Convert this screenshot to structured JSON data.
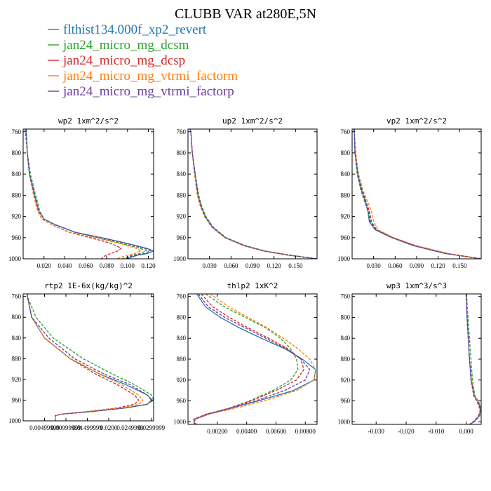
{
  "figure_title": "CLUBB VAR at280E,5N",
  "legend": [
    {
      "label": "flthist134.000f_xp2_revert",
      "color": "#1f77b4",
      "dash": "solid"
    },
    {
      "label": "jan24_micro_mg_dcsm",
      "color": "#2ca02c",
      "dash": "dash"
    },
    {
      "label": "jan24_micro_mg_dcsp",
      "color": "#d62728",
      "dash": "dash"
    },
    {
      "label": "jan24_micro_mg_vtrmi_factorm",
      "color": "#ff7f0e",
      "dash": "dash"
    },
    {
      "label": "jan24_micro_mg_vtrmi_factorp",
      "color": "#6a3d9a",
      "dash": "dash"
    }
  ],
  "chart_data": [
    {
      "type": "line",
      "title": "wp2  1xm^2/s^2",
      "xlim": [
        0.0,
        0.125
      ],
      "ylim": [
        755,
        1000
      ],
      "y_inverted": true,
      "xticks": [
        0.02,
        0.04,
        0.06,
        0.08,
        0.1,
        0.12
      ],
      "xtick_labels": [
        "0.020",
        "0.040",
        "0.060",
        "0.080",
        "0.100",
        "0.120"
      ],
      "yticks": [
        760,
        800,
        840,
        880,
        920,
        960,
        1000
      ],
      "ytick_labels": [
        "760",
        "800",
        "840",
        "880",
        "920",
        "960",
        "1000"
      ],
      "y": [
        755,
        760,
        800,
        840,
        880,
        910,
        925,
        935,
        950,
        960,
        970,
        980,
        985,
        990,
        993,
        996,
        1000
      ],
      "series": [
        {
          "x": [
            0.003,
            0.003,
            0.004,
            0.006,
            0.011,
            0.015,
            0.02,
            0.03,
            0.05,
            0.075,
            0.098,
            0.118,
            0.125,
            0.119,
            0.11,
            0.105,
            0.1
          ]
        },
        {
          "x": [
            0.002,
            0.002,
            0.004,
            0.007,
            0.012,
            0.016,
            0.02,
            0.03,
            0.05,
            0.072,
            0.093,
            0.112,
            0.118,
            0.112,
            0.105,
            0.1,
            0.095
          ]
        },
        {
          "x": [
            0.003,
            0.003,
            0.004,
            0.006,
            0.01,
            0.014,
            0.018,
            0.027,
            0.044,
            0.064,
            0.083,
            0.094,
            0.091,
            0.084,
            0.08,
            0.077,
            0.075
          ]
        },
        {
          "x": [
            0.003,
            0.003,
            0.004,
            0.006,
            0.01,
            0.014,
            0.018,
            0.027,
            0.045,
            0.068,
            0.09,
            0.108,
            0.113,
            0.107,
            0.1,
            0.095,
            0.09
          ]
        },
        {
          "x": [
            0.003,
            0.003,
            0.004,
            0.006,
            0.011,
            0.015,
            0.02,
            0.03,
            0.05,
            0.074,
            0.097,
            0.116,
            0.122,
            0.116,
            0.108,
            0.102,
            0.098
          ]
        }
      ]
    },
    {
      "type": "line",
      "title": "up2  1xm^2/s^2",
      "xlim": [
        0.0,
        0.18
      ],
      "ylim": [
        755,
        1000
      ],
      "y_inverted": true,
      "xticks": [
        0.03,
        0.06,
        0.09,
        0.12,
        0.15
      ],
      "xtick_labels": [
        "0.030",
        "0.060",
        "0.090",
        "0.120",
        "0.150"
      ],
      "yticks": [
        760,
        800,
        840,
        880,
        920,
        960,
        1000
      ],
      "ytick_labels": [
        "760",
        "800",
        "840",
        "880",
        "920",
        "960",
        "1000"
      ],
      "y": [
        755,
        760,
        800,
        840,
        880,
        900,
        920,
        940,
        960,
        975,
        985,
        993,
        1000
      ],
      "series": [
        {
          "x": [
            0.003,
            0.004,
            0.006,
            0.01,
            0.014,
            0.018,
            0.024,
            0.034,
            0.052,
            0.078,
            0.105,
            0.14,
            0.18
          ]
        },
        {
          "x": [
            0.003,
            0.004,
            0.006,
            0.01,
            0.015,
            0.019,
            0.025,
            0.035,
            0.053,
            0.08,
            0.107,
            0.142,
            0.18
          ]
        },
        {
          "x": [
            0.003,
            0.004,
            0.006,
            0.01,
            0.014,
            0.018,
            0.024,
            0.034,
            0.052,
            0.078,
            0.104,
            0.139,
            0.178
          ]
        },
        {
          "x": [
            0.003,
            0.004,
            0.006,
            0.009,
            0.013,
            0.017,
            0.023,
            0.033,
            0.051,
            0.077,
            0.104,
            0.139,
            0.178
          ]
        },
        {
          "x": [
            0.003,
            0.004,
            0.006,
            0.01,
            0.014,
            0.018,
            0.024,
            0.034,
            0.052,
            0.079,
            0.106,
            0.141,
            0.18
          ]
        }
      ]
    },
    {
      "type": "line",
      "title": "vp2  1xm^2/s^2",
      "xlim": [
        0.0,
        0.18
      ],
      "ylim": [
        755,
        1000
      ],
      "y_inverted": true,
      "xticks": [
        0.03,
        0.06,
        0.09,
        0.12,
        0.15
      ],
      "xtick_labels": [
        "0.030",
        "0.060",
        "0.090",
        "0.120",
        "0.150"
      ],
      "yticks": [
        760,
        800,
        840,
        880,
        920,
        960,
        1000
      ],
      "ytick_labels": [
        "760",
        "800",
        "840",
        "880",
        "920",
        "960",
        "1000"
      ],
      "y": [
        755,
        760,
        800,
        840,
        870,
        890,
        910,
        930,
        945,
        960,
        975,
        990,
        1000
      ],
      "series": [
        {
          "x": [
            0.003,
            0.003,
            0.004,
            0.008,
            0.013,
            0.018,
            0.022,
            0.024,
            0.032,
            0.055,
            0.085,
            0.13,
            0.18
          ]
        },
        {
          "x": [
            0.003,
            0.003,
            0.004,
            0.007,
            0.012,
            0.017,
            0.022,
            0.025,
            0.033,
            0.056,
            0.087,
            0.132,
            0.18
          ]
        },
        {
          "x": [
            0.003,
            0.003,
            0.005,
            0.008,
            0.014,
            0.019,
            0.024,
            0.027,
            0.034,
            0.057,
            0.088,
            0.133,
            0.18
          ]
        },
        {
          "x": [
            0.003,
            0.003,
            0.005,
            0.009,
            0.015,
            0.021,
            0.027,
            0.03,
            0.036,
            0.058,
            0.089,
            0.134,
            0.18
          ]
        },
        {
          "x": [
            0.003,
            0.003,
            0.004,
            0.008,
            0.013,
            0.018,
            0.023,
            0.026,
            0.033,
            0.056,
            0.086,
            0.131,
            0.18
          ]
        }
      ]
    },
    {
      "type": "line",
      "title": "rtp2  1E-6x(kg/kg)^2",
      "xlim": [
        0.0,
        0.0305
      ],
      "ylim": [
        755,
        1000
      ],
      "y_inverted": true,
      "xticks": [
        0.005,
        0.01,
        0.015,
        0.02,
        0.025,
        0.03
      ],
      "xtick_labels": [
        "0.00499999",
        "0.00999999",
        "0.01499999",
        "0.0200",
        "0.0249999",
        "0.0299999"
      ],
      "yticks": [
        760,
        800,
        840,
        880,
        920,
        960,
        1000
      ],
      "ytick_labels": [
        "760",
        "800",
        "840",
        "880",
        "920",
        "960",
        "1000"
      ],
      "y": [
        755,
        760,
        800,
        840,
        880,
        910,
        930,
        950,
        960,
        968,
        975,
        982,
        987,
        990,
        993,
        1000
      ],
      "series": [
        {
          "x": [
            0.001,
            0.001,
            0.002,
            0.005,
            0.011,
            0.018,
            0.024,
            0.029,
            0.0302,
            0.029,
            0.024,
            0.016,
            0.009,
            0.0075,
            0.0075,
            0.0075
          ]
        },
        {
          "x": [
            0.001,
            0.001,
            0.003,
            0.007,
            0.014,
            0.021,
            0.026,
            0.03,
            0.0305,
            0.029,
            0.024,
            0.016,
            0.009,
            0.0075,
            0.0075,
            0.0075
          ]
        },
        {
          "x": [
            0.001,
            0.001,
            0.002,
            0.005,
            0.011,
            0.017,
            0.022,
            0.026,
            0.027,
            0.026,
            0.022,
            0.015,
            0.009,
            0.0075,
            0.0075,
            0.0075
          ]
        },
        {
          "x": [
            0.001,
            0.001,
            0.002,
            0.005,
            0.011,
            0.018,
            0.023,
            0.027,
            0.028,
            0.027,
            0.023,
            0.015,
            0.009,
            0.0075,
            0.0075,
            0.0075
          ]
        },
        {
          "x": [
            0.001,
            0.001,
            0.002,
            0.006,
            0.012,
            0.019,
            0.025,
            0.029,
            0.03,
            0.029,
            0.024,
            0.016,
            0.009,
            0.0075,
            0.0075,
            0.0075
          ]
        }
      ]
    },
    {
      "type": "line",
      "title": "thlp2  1xK^2",
      "xlim": [
        0.0,
        0.0088
      ],
      "ylim": [
        755,
        1005
      ],
      "y_inverted": true,
      "xticks": [
        0.002,
        0.004,
        0.006,
        0.008
      ],
      "xtick_labels": [
        "0.00200",
        "0.00400",
        "0.00600",
        "0.00800"
      ],
      "yticks": [
        760,
        800,
        840,
        880,
        920,
        960,
        1000
      ],
      "ytick_labels": [
        "760",
        "800",
        "840",
        "880",
        "920",
        "960",
        "1000"
      ],
      "y": [
        755,
        780,
        800,
        820,
        840,
        860,
        880,
        900,
        920,
        940,
        960,
        975,
        985,
        995,
        1002,
        1005
      ],
      "series": [
        {
          "x": [
            0.0006,
            0.0012,
            0.0022,
            0.0035,
            0.005,
            0.0066,
            0.0078,
            0.0087,
            0.0086,
            0.0072,
            0.0048,
            0.0028,
            0.0014,
            0.0005,
            0.0004,
            0.0006
          ]
        },
        {
          "x": [
            0.0012,
            0.0025,
            0.0039,
            0.0053,
            0.0063,
            0.007,
            0.0074,
            0.0075,
            0.007,
            0.0058,
            0.0042,
            0.0027,
            0.0013,
            0.0004,
            0.0004,
            0.0006
          ]
        },
        {
          "x": [
            0.0009,
            0.0017,
            0.0028,
            0.0041,
            0.0055,
            0.0068,
            0.0077,
            0.0079,
            0.0074,
            0.006,
            0.0043,
            0.0027,
            0.0013,
            0.0004,
            0.0004,
            0.0006
          ]
        },
        {
          "x": [
            0.0015,
            0.0028,
            0.0041,
            0.0054,
            0.0065,
            0.0075,
            0.0083,
            0.0087,
            0.0086,
            0.0074,
            0.0052,
            0.0031,
            0.0015,
            0.0005,
            0.0004,
            0.0006
          ]
        },
        {
          "x": [
            0.0007,
            0.0014,
            0.0025,
            0.0039,
            0.0053,
            0.0067,
            0.0077,
            0.0083,
            0.008,
            0.0066,
            0.0046,
            0.0028,
            0.0014,
            0.0005,
            0.0004,
            0.0006
          ]
        }
      ]
    },
    {
      "type": "line",
      "title": "wp3  1xm^3/s^3",
      "xlim": [
        -0.038,
        0.005
      ],
      "ylim": [
        755,
        1005
      ],
      "y_inverted": true,
      "xticks": [
        -0.03,
        -0.02,
        -0.01,
        0.0
      ],
      "xtick_labels": [
        "-0.030",
        "-0.020",
        "-0.010",
        "0.000"
      ],
      "yticks": [
        760,
        800,
        840,
        880,
        920,
        960,
        1000
      ],
      "ytick_labels": [
        "760",
        "800",
        "840",
        "880",
        "920",
        "960",
        "1000"
      ],
      "y": [
        755,
        800,
        840,
        880,
        920,
        950,
        960,
        970,
        980,
        990,
        1000,
        1005
      ],
      "series": [
        {
          "x": [
            0.0,
            0.0003,
            0.0007,
            0.0011,
            0.0017,
            0.0027,
            0.0038,
            0.0046,
            0.0048,
            0.0042,
            0.0026,
            0.0012
          ]
        },
        {
          "x": [
            0.0001,
            0.0006,
            0.0011,
            0.0016,
            0.0021,
            0.0029,
            0.004,
            0.0048,
            0.005,
            0.0044,
            0.0028,
            0.0013
          ]
        },
        {
          "x": [
            0.0,
            0.0003,
            0.0007,
            0.0011,
            0.0016,
            0.0025,
            0.0035,
            0.0043,
            0.0046,
            0.004,
            0.0024,
            0.0011
          ]
        },
        {
          "x": [
            0.0,
            0.0003,
            0.0007,
            0.0011,
            0.0018,
            0.0027,
            0.0038,
            0.0046,
            0.0048,
            0.0042,
            0.0026,
            0.0012
          ]
        },
        {
          "x": [
            0.0,
            0.0003,
            0.0007,
            0.0011,
            0.0016,
            0.0026,
            0.0036,
            0.0045,
            0.0047,
            0.0041,
            0.0025,
            0.0011
          ]
        }
      ]
    }
  ]
}
